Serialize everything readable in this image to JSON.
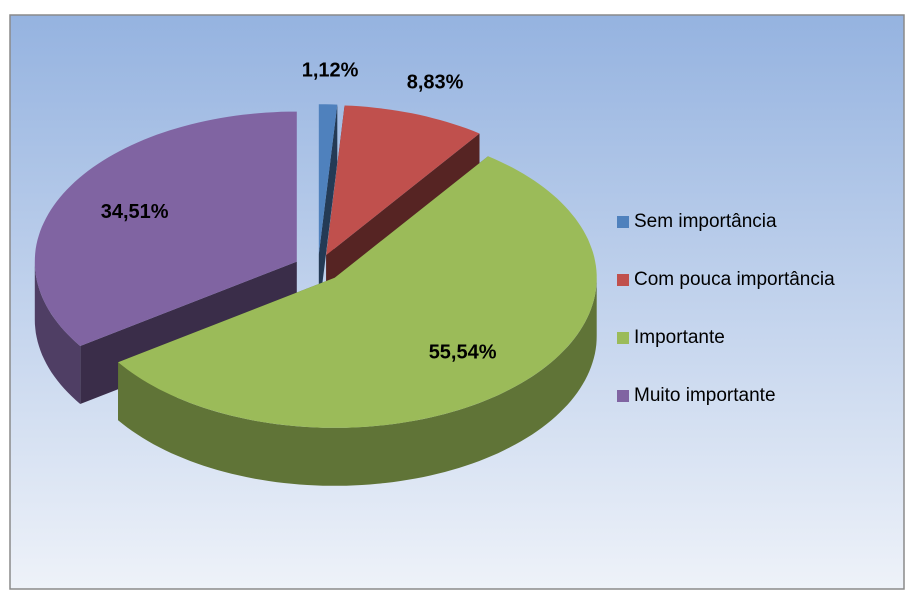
{
  "chart_data": {
    "type": "pie3d",
    "series": [
      {
        "name": "Sem importância",
        "color": "#4f81bd",
        "values": [
          1.12
        ],
        "value_labels": [
          "1,12%"
        ]
      },
      {
        "name": "Com pouca importância",
        "color": "#c0504d",
        "values": [
          8.83
        ],
        "value_labels": [
          "8,83%"
        ]
      },
      {
        "name": "Importante",
        "color": "#9bbb59",
        "values": [
          55.54
        ],
        "value_labels": [
          "55,54%"
        ]
      },
      {
        "name": "Muito importante",
        "color": "#8064a2",
        "values": [
          34.51
        ],
        "value_labels": [
          "34,51%"
        ]
      }
    ],
    "legend": "right"
  }
}
